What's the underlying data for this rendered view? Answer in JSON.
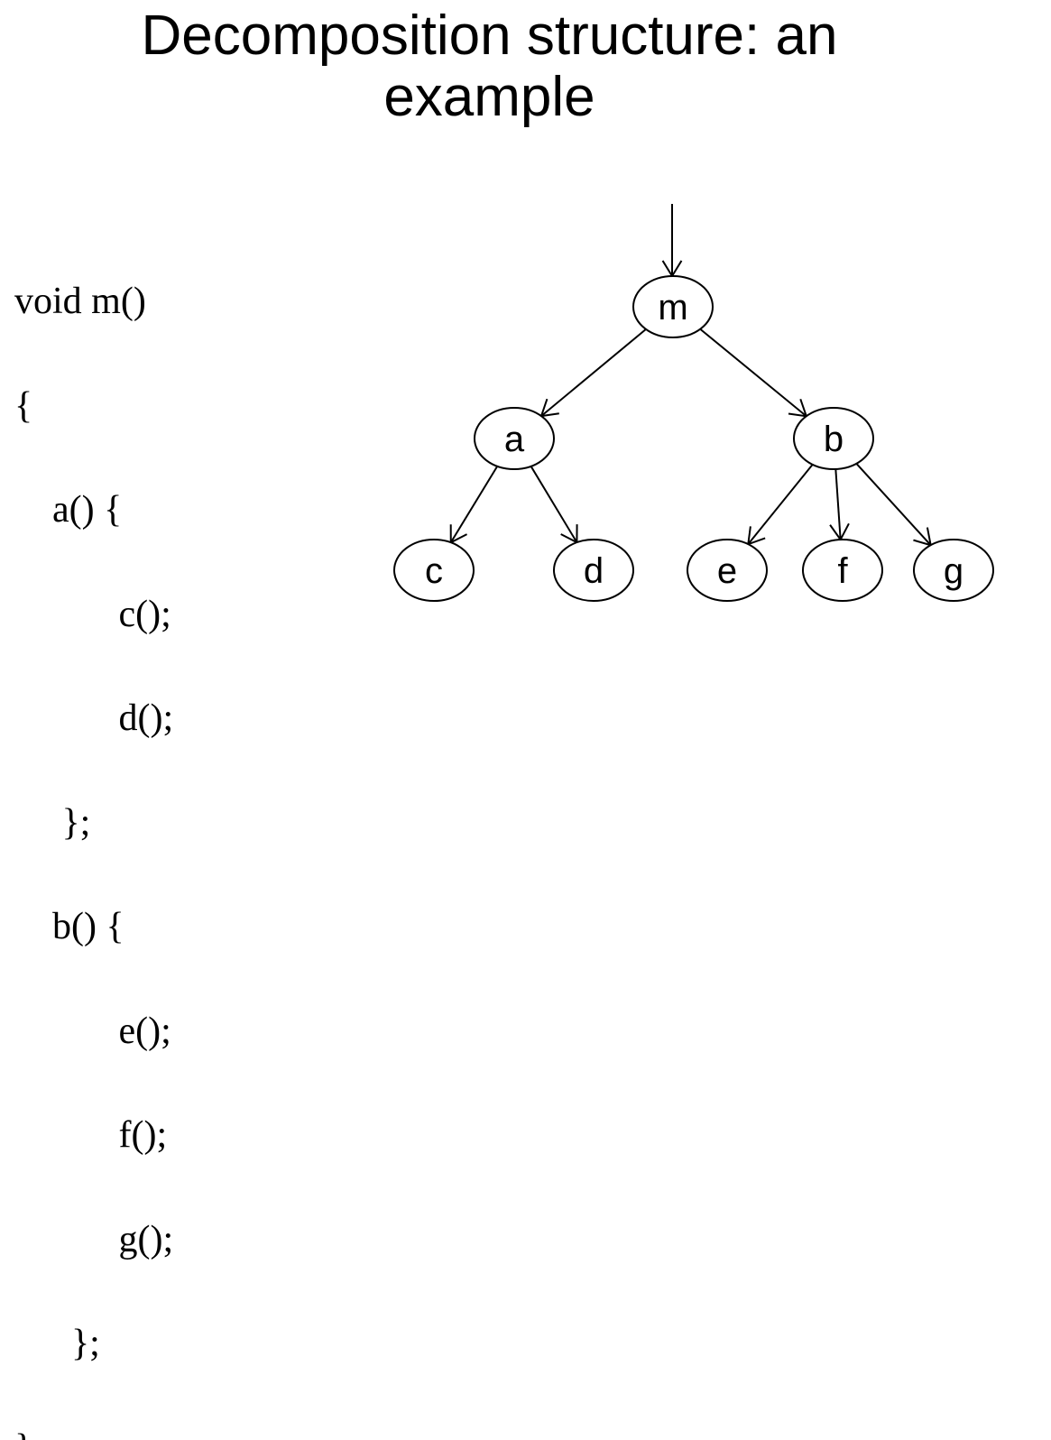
{
  "title_lines": [
    "Decomposition structure: an",
    "example"
  ],
  "code_lines": [
    "void m()",
    "{",
    "    a() {",
    "           c();",
    "           d();",
    "     };",
    "    b() {",
    "           e();",
    "           f();",
    "           g();",
    "      };",
    "}"
  ],
  "tree": {
    "nodes": [
      {
        "id": "m",
        "label": "m"
      },
      {
        "id": "a",
        "label": "a"
      },
      {
        "id": "b",
        "label": "b"
      },
      {
        "id": "c",
        "label": "c"
      },
      {
        "id": "d",
        "label": "d"
      },
      {
        "id": "e",
        "label": "e"
      },
      {
        "id": "f",
        "label": "f"
      },
      {
        "id": "g",
        "label": "g"
      }
    ],
    "edges": [
      {
        "from": "m",
        "to": "a"
      },
      {
        "from": "m",
        "to": "b"
      },
      {
        "from": "a",
        "to": "c"
      },
      {
        "from": "a",
        "to": "d"
      },
      {
        "from": "b",
        "to": "e"
      },
      {
        "from": "b",
        "to": "f"
      },
      {
        "from": "b",
        "to": "g"
      }
    ],
    "entry": "m"
  }
}
